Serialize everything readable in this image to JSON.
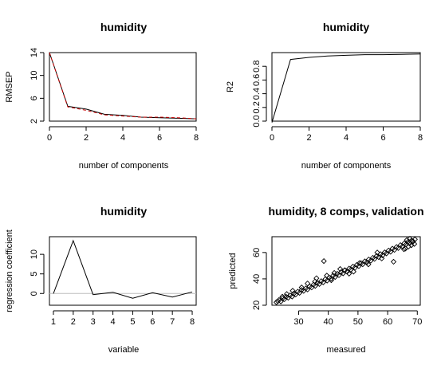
{
  "chart_data": [
    {
      "type": "line",
      "title": "humidity",
      "xlabel": "number of components",
      "ylabel": "RMSEP",
      "xlim": [
        0,
        8
      ],
      "ylim": [
        2,
        14
      ],
      "xticks": [
        0,
        2,
        4,
        6,
        8
      ],
      "yticks": [
        2,
        6,
        10,
        14
      ],
      "x": [
        0,
        1,
        2,
        3,
        4,
        5,
        6,
        7,
        8
      ],
      "series": [
        {
          "values": [
            14.0,
            4.6,
            4.1,
            3.2,
            3.0,
            2.7,
            2.6,
            2.5,
            2.4
          ],
          "color": "#000000",
          "dash": "none"
        },
        {
          "values": [
            14.0,
            4.5,
            3.9,
            3.1,
            2.9,
            2.7,
            2.7,
            2.6,
            2.4
          ],
          "color": "#cc0000",
          "dash": "4,3"
        }
      ]
    },
    {
      "type": "line",
      "title": "humidity",
      "xlabel": "number of components",
      "ylabel": "R2",
      "xlim": [
        0,
        8
      ],
      "ylim": [
        0,
        1
      ],
      "xticks": [
        0,
        2,
        4,
        6,
        8
      ],
      "yticks": [
        0.0,
        0.2,
        0.4,
        0.6,
        0.8
      ],
      "ytick_labels": [
        "0.0",
        "0.2",
        "0.4",
        "0.6",
        "0.8"
      ],
      "x": [
        0,
        1,
        2,
        3,
        4,
        5,
        6,
        7,
        8
      ],
      "series": [
        {
          "values": [
            -0.02,
            0.9,
            0.93,
            0.95,
            0.96,
            0.97,
            0.97,
            0.975,
            0.98
          ],
          "color": "#000000",
          "dash": "none"
        }
      ]
    },
    {
      "type": "line",
      "title": "humidity",
      "xlabel": "variable",
      "ylabel": "regression coefficient",
      "xlim": [
        0.8,
        8.2
      ],
      "ylim": [
        -3,
        14.5
      ],
      "xticks": [
        1,
        2,
        3,
        4,
        5,
        6,
        7,
        8
      ],
      "yticks": [
        0,
        5,
        10
      ],
      "baseline": 0,
      "x": [
        1,
        2,
        3,
        4,
        5,
        6,
        7,
        8
      ],
      "series": [
        {
          "values": [
            0.0,
            13.5,
            -0.3,
            0.3,
            -1.2,
            0.2,
            -0.9,
            0.4
          ],
          "color": "#000000",
          "dash": "none"
        }
      ]
    },
    {
      "type": "scatter",
      "title": "humidity, 8 comps, validation",
      "xlabel": "measured",
      "ylabel": "predicted",
      "xlim": [
        21,
        71
      ],
      "ylim": [
        20,
        72
      ],
      "xticks": [
        30,
        40,
        50,
        60,
        70
      ],
      "yticks": [
        20,
        40,
        60
      ],
      "points": [
        [
          22.5,
          22.3
        ],
        [
          23.0,
          23.1
        ],
        [
          23.4,
          24.0
        ],
        [
          24.0,
          22.9
        ],
        [
          24.6,
          25.3
        ],
        [
          25.2,
          24.6
        ],
        [
          25.8,
          26.4
        ],
        [
          26.5,
          25.7
        ],
        [
          27.1,
          27.5
        ],
        [
          27.8,
          26.6
        ],
        [
          28.4,
          28.9
        ],
        [
          29.0,
          28.2
        ],
        [
          29.7,
          30.3
        ],
        [
          30.3,
          29.4
        ],
        [
          31.0,
          31.6
        ],
        [
          31.7,
          30.9
        ],
        [
          32.4,
          32.8
        ],
        [
          33.0,
          32.0
        ],
        [
          33.7,
          34.2
        ],
        [
          34.4,
          33.5
        ],
        [
          35.0,
          35.6
        ],
        [
          35.6,
          34.7
        ],
        [
          36.3,
          37.0
        ],
        [
          37.0,
          36.1
        ],
        [
          37.6,
          38.3
        ],
        [
          38.3,
          37.4
        ],
        [
          39.0,
          39.8
        ],
        [
          39.6,
          38.7
        ],
        [
          40.3,
          41.0
        ],
        [
          41.0,
          40.2
        ],
        [
          41.6,
          42.4
        ],
        [
          42.3,
          41.4
        ],
        [
          43.0,
          43.9
        ],
        [
          43.6,
          42.8
        ],
        [
          44.3,
          45.1
        ],
        [
          45.0,
          44.2
        ],
        [
          45.6,
          46.6
        ],
        [
          46.3,
          45.5
        ],
        [
          47.0,
          47.8
        ],
        [
          47.6,
          47.0
        ],
        [
          48.3,
          49.3
        ],
        [
          49.0,
          48.4
        ],
        [
          49.6,
          50.6
        ],
        [
          50.3,
          49.7
        ],
        [
          51.0,
          52.0
        ],
        [
          51.6,
          51.1
        ],
        [
          52.3,
          53.3
        ],
        [
          53.0,
          52.5
        ],
        [
          53.6,
          54.7
        ],
        [
          54.3,
          53.8
        ],
        [
          55.0,
          56.0
        ],
        [
          55.6,
          55.2
        ],
        [
          56.3,
          57.4
        ],
        [
          57.0,
          56.5
        ],
        [
          57.6,
          58.8
        ],
        [
          58.3,
          57.9
        ],
        [
          59.0,
          60.1
        ],
        [
          59.6,
          59.3
        ],
        [
          60.3,
          61.5
        ],
        [
          61.0,
          60.6
        ],
        [
          61.6,
          62.9
        ],
        [
          62.3,
          62.0
        ],
        [
          63.0,
          64.2
        ],
        [
          63.6,
          63.4
        ],
        [
          64.3,
          65.6
        ],
        [
          65.0,
          64.7
        ],
        [
          65.6,
          66.9
        ],
        [
          66.2,
          66.0
        ],
        [
          66.8,
          68.0
        ],
        [
          67.4,
          67.2
        ],
        [
          68.0,
          69.0
        ],
        [
          68.6,
          68.4
        ],
        [
          69.2,
          70.0
        ],
        [
          66.0,
          63.0
        ],
        [
          67.0,
          64.5
        ],
        [
          68.0,
          65.5
        ],
        [
          66.5,
          69.5
        ],
        [
          67.5,
          70.5
        ],
        [
          65.5,
          62.5
        ],
        [
          69.0,
          66.5
        ],
        [
          38.5,
          53.5
        ],
        [
          62.0,
          53.0
        ],
        [
          45.5,
          46.5
        ],
        [
          47.0,
          44.0
        ],
        [
          44.0,
          47.5
        ],
        [
          36.0,
          40.5
        ],
        [
          39.5,
          42.5
        ],
        [
          33.0,
          36.5
        ],
        [
          31.0,
          33.5
        ],
        [
          28.0,
          31.0
        ],
        [
          35.5,
          38.0
        ],
        [
          42.0,
          44.5
        ],
        [
          50.5,
          52.0
        ],
        [
          53.5,
          51.0
        ],
        [
          56.5,
          60.0
        ],
        [
          58.0,
          55.5
        ],
        [
          26.0,
          28.5
        ],
        [
          24.5,
          26.5
        ],
        [
          41.0,
          39.0
        ],
        [
          48.5,
          45.5
        ]
      ]
    }
  ]
}
